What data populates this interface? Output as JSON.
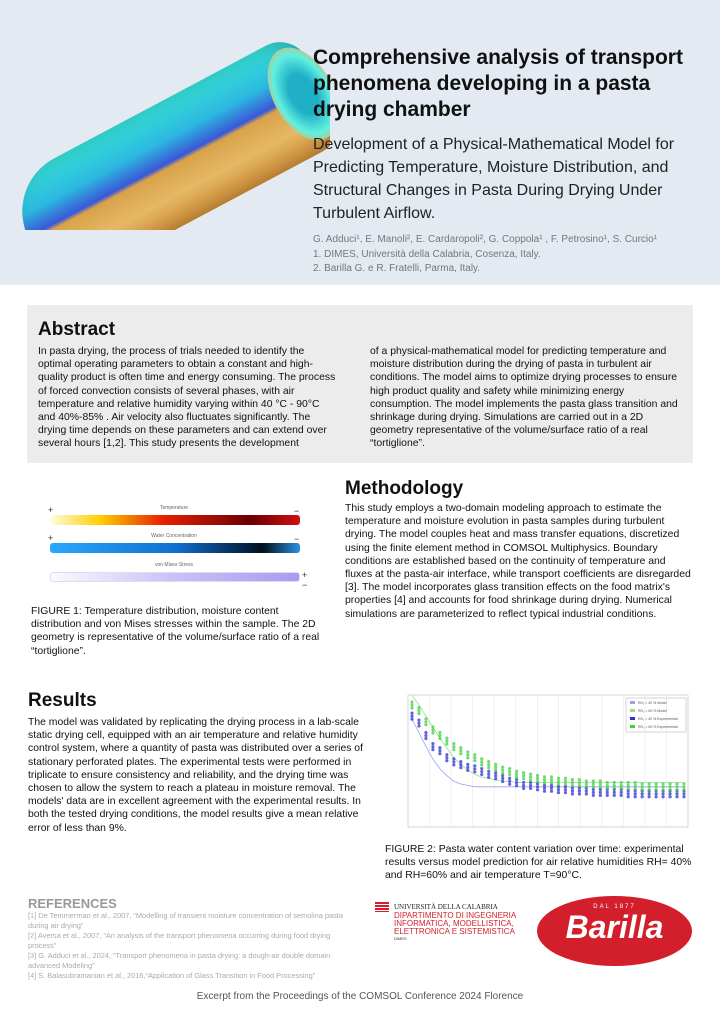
{
  "header": {
    "title": "Comprehensive analysis of transport phenomena developing in a pasta drying chamber",
    "subtitle": "Development of a Physical-Mathematical Model for Predicting Temperature, Moisture Distribution, and Structural Changes in Pasta During Drying Under Turbulent Airflow.",
    "authors": "G. Adduci¹, E. Manoli², E. Cardaropoli², G. Coppola¹ , F. Petrosino¹, S. Curcio¹",
    "affiliation1": "1. DIMES, Università della Calabria, Cosenza, Italy.",
    "affiliation2": "2. Barilla G. e R. Fratelli, Parma, Italy."
  },
  "abstract": {
    "heading": "Abstract",
    "col1": "In pasta drying, the process of trials needed to identify the optimal operating parameters to obtain a constant and high-quality product is often time and energy consuming. The process of forced convection consists of several phases, with air temperature and relative humidity varying within 40 °C - 90°C and 40%-85% . Air velocity also fluctuates significantly. The drying time depends on these parameters and can extend over several hours [1,2]. This study presents the development",
    "col2": "of a physical-mathematical model for predicting temperature and moisture distribution during the drying of pasta in turbulent air conditions. The model aims to optimize drying processes to ensure high product quality and safety while minimizing energy consumption. The model implements the pasta glass transition and shrinkage during drying. Simulations are carried out in a 2D geometry representative of the volume/surface ratio of a real “tortiglione”."
  },
  "figure1": {
    "labels": [
      "Temperature",
      "Water Concentration",
      "von Mises Stress"
    ],
    "caption": "FIGURE 1: Temperature distribution, moisture content distribution and von Mises stresses within the sample. The 2D geometry is representative of the volume/surface ratio of a real “tortiglione”."
  },
  "methodology": {
    "heading": "Methodology",
    "text": "This study employs a two-domain modeling approach to estimate the temperature and moisture evolution in pasta samples during turbulent drying. The model couples heat and mass transfer equations, discretized using the finite element method in COMSOL Multiphysics. Boundary conditions are established based on the continuity of temperature and fluxes at the pasta-air interface, while transport coefficients are disregarded [3]. The model incorporates glass transition effects on the food matrix's properties [4] and accounts for food shrinkage during drying. Numerical simulations are parameterized to reflect typical industrial conditions."
  },
  "results": {
    "heading": "Results",
    "text": "The model was validated by replicating the drying process in a lab-scale static drying cell, equipped with an air temperature and relative humidity control system, where a quantity of pasta was distributed over a series of stationary perforated plates. The experimental tests were performed in triplicate to ensure consistency and reliability, and the drying time was chosen to allow the system to reach a plateau in moisture removal. The models' data are in excellent agreement with the experimental results. In both the tested drying conditions, the model results give a mean relative error of less than 9%."
  },
  "figure2": {
    "caption": "FIGURE 2:  Pasta water content variation over time: experimental results versus model prediction for air relative humidities RH= 40% and RH=60% and air temperature T=90°C.",
    "chart_data": {
      "type": "line",
      "series": [
        {
          "name": "RH₁ = 40 % Model",
          "color": "#9aa0f0",
          "style": "line",
          "values": [
            0.78,
            0.68,
            0.58,
            0.49,
            0.42,
            0.37,
            0.33,
            0.31,
            0.3,
            0.29,
            0.29,
            0.29,
            0.29,
            0.29,
            0.29,
            0.29,
            0.29,
            0.29,
            0.29,
            0.29,
            0.29,
            0.29,
            0.29,
            0.29,
            0.29,
            0.29,
            0.29,
            0.29,
            0.29,
            0.29,
            0.29,
            0.29,
            0.29,
            0.29,
            0.29,
            0.29,
            0.29,
            0.29,
            0.29,
            0.29
          ]
        },
        {
          "name": "RH₂ = 60 % Model",
          "color": "#90e090",
          "style": "line",
          "values": [
            0.95,
            0.88,
            0.8,
            0.72,
            0.64,
            0.57,
            0.5,
            0.45,
            0.41,
            0.38,
            0.36,
            0.35,
            0.34,
            0.33,
            0.33,
            0.32,
            0.32,
            0.32,
            0.32,
            0.32,
            0.32,
            0.32,
            0.32,
            0.32,
            0.32,
            0.32,
            0.32,
            0.32,
            0.32,
            0.32,
            0.32,
            0.32,
            0.32,
            0.32,
            0.32,
            0.32,
            0.32,
            0.32,
            0.32,
            0.32
          ]
        },
        {
          "name": "RH₁ = 40 % Experimental",
          "color": "#3030d0",
          "style": "points",
          "values": [
            0.8,
            0.75,
            0.66,
            0.58,
            0.55,
            0.5,
            0.47,
            0.45,
            0.43,
            0.42,
            0.4,
            0.38,
            0.37,
            0.35,
            0.33,
            0.32,
            0.3,
            0.3,
            0.29,
            0.28,
            0.28,
            0.27,
            0.27,
            0.26,
            0.26,
            0.26,
            0.25,
            0.25,
            0.25,
            0.25,
            0.25,
            0.24,
            0.24,
            0.24,
            0.24,
            0.24,
            0.24,
            0.24,
            0.24,
            0.24
          ]
        },
        {
          "name": "RH₂ = 60 % Experimental",
          "color": "#40d040",
          "style": "points",
          "values": [
            0.88,
            0.84,
            0.76,
            0.7,
            0.66,
            0.62,
            0.58,
            0.55,
            0.52,
            0.5,
            0.47,
            0.45,
            0.43,
            0.41,
            0.4,
            0.38,
            0.37,
            0.36,
            0.35,
            0.34,
            0.34,
            0.33,
            0.33,
            0.32,
            0.32,
            0.31,
            0.31,
            0.31,
            0.3,
            0.3,
            0.3,
            0.3,
            0.3,
            0.29,
            0.29,
            0.29,
            0.29,
            0.29,
            0.29,
            0.29
          ]
        }
      ],
      "legend": "top-right",
      "grid": true
    }
  },
  "references": {
    "heading": "REFERENCES",
    "items": [
      "[1] De Temmerman et al., 2007,  “Modelling of transient moisture concentration of semolina pasta during air drying”",
      "[2] Aversa et al., 2007, “An analysis of the transport phenomena occurring during food drying process”",
      "[3] G. Adduci et al., 2024, “Transport phenomena in pasta drying: a dough-air double domain advanced Modeling”",
      "[4] S. Balasubramanian et al., 2016,“Application of Glass Transition in Food Processing”"
    ]
  },
  "logos": {
    "unical": "UNIVERSITÀ DELLA CALABRIA",
    "dept": "DIPARTIMENTO DI INGEGNERIA INFORMATICA, MODELLISTICA, ELETTRONICA E SISTEMISTICA",
    "dimes": "DIMES",
    "barilla_tag": "DAL 1877",
    "barilla": "Barilla"
  },
  "footer": "Excerpt from the Proceedings of the COMSOL Conference 2024 Florence",
  "colors": {
    "header_bg": "#e3eaf1",
    "abstract_bg": "#ececec",
    "barilla_red": "#d21f2b"
  }
}
